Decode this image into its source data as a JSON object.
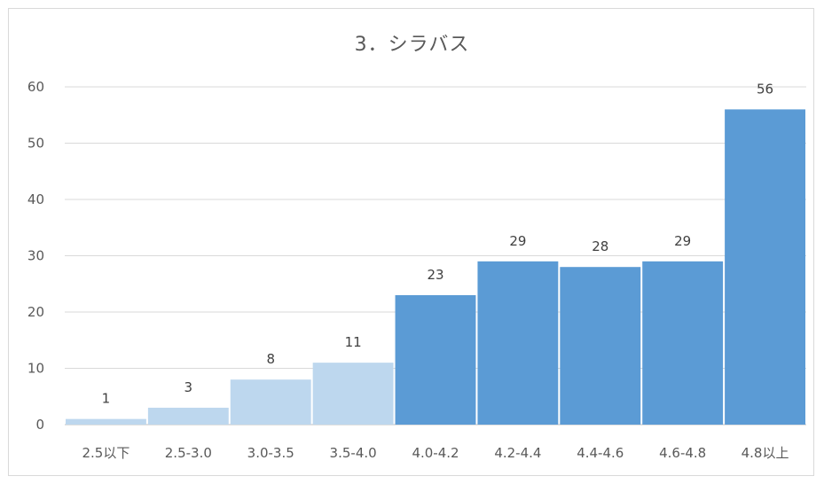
{
  "chart_data": {
    "type": "bar",
    "title": "3．シラバス",
    "categories": [
      "2.5以下",
      "2.5-3.0",
      "3.0-3.5",
      "3.5-4.0",
      "4.0-4.2",
      "4.2-4.4",
      "4.4-4.6",
      "4.6-4.8",
      "4.8以上"
    ],
    "values": [
      1,
      3,
      8,
      11,
      23,
      29,
      28,
      29,
      56
    ],
    "bar_colors": [
      "#bdd7ee",
      "#bdd7ee",
      "#bdd7ee",
      "#bdd7ee",
      "#5b9bd5",
      "#5b9bd5",
      "#5b9bd5",
      "#5b9bd5",
      "#5b9bd5"
    ],
    "ylim": [
      0,
      60
    ],
    "yticks": [
      0,
      10,
      20,
      30,
      40,
      50,
      60
    ],
    "grid": true,
    "legend": "none",
    "xlabel": "",
    "ylabel": ""
  }
}
